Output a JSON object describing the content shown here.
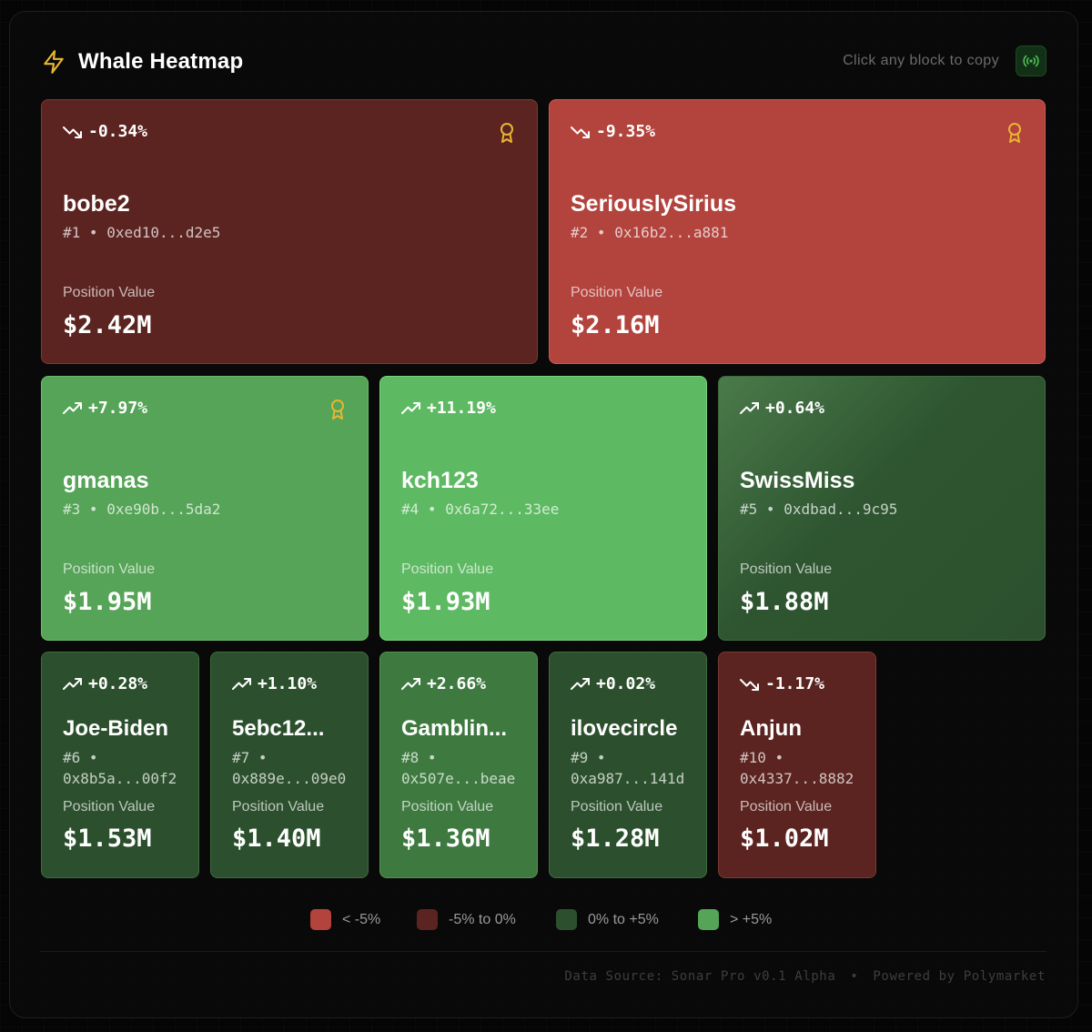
{
  "header": {
    "title": "Whale Heatmap",
    "hint": "Click any block to copy",
    "bolt_icon": "bolt-icon",
    "live_icon": "broadcast-icon"
  },
  "colors": {
    "strong_negative": "#b2433d",
    "mild_negative": "#5b2420",
    "mild_positive": "#2c502d",
    "strong_positive": "#55a457",
    "award": "#e8b630",
    "bolt": "#e8b630"
  },
  "pv_label": "Position Value",
  "whales": [
    {
      "rank_label": "#1",
      "name": "bobe2",
      "address": "0xed10...d2e5",
      "change": "-0.34%",
      "trend": "down",
      "value": "$2.42M",
      "award": true
    },
    {
      "rank_label": "#2",
      "name": "SeriouslySirius",
      "address": "0x16b2...a881",
      "change": "-9.35%",
      "trend": "down",
      "value": "$2.16M",
      "award": true
    },
    {
      "rank_label": "#3",
      "name": "gmanas",
      "address": "0xe90b...5da2",
      "change": "+7.97%",
      "trend": "up",
      "value": "$1.95M",
      "award": true
    },
    {
      "rank_label": "#4",
      "name": "kch123",
      "address": "0x6a72...33ee",
      "change": "+11.19%",
      "trend": "up",
      "value": "$1.93M",
      "award": false
    },
    {
      "rank_label": "#5",
      "name": "SwissMiss",
      "address": "0xdbad...9c95",
      "change": "+0.64%",
      "trend": "up",
      "value": "$1.88M",
      "award": false
    },
    {
      "rank_label": "#6",
      "name": "Joe-Biden",
      "address": "0x8b5a...00f2",
      "change": "+0.28%",
      "trend": "up",
      "value": "$1.53M",
      "award": false
    },
    {
      "rank_label": "#7",
      "name": "5ebc12...",
      "address": "0x889e...09e0",
      "change": "+1.10%",
      "trend": "up",
      "value": "$1.40M",
      "award": false
    },
    {
      "rank_label": "#8",
      "name": "Gamblin...",
      "address": "0x507e...beae",
      "change": "+2.66%",
      "trend": "up",
      "value": "$1.36M",
      "award": false
    },
    {
      "rank_label": "#9",
      "name": "ilovecircle",
      "address": "0xa987...141d",
      "change": "+0.02%",
      "trend": "up",
      "value": "$1.28M",
      "award": false
    },
    {
      "rank_label": "#10",
      "name": "Anjun",
      "address": "0x4337...8882",
      "change": "-1.17%",
      "trend": "down",
      "value": "$1.02M",
      "award": false
    }
  ],
  "legend": [
    {
      "label": "< -5%",
      "color": "#b2433d"
    },
    {
      "label": "-5% to 0%",
      "color": "#5b2420"
    },
    {
      "label": "0% to +5%",
      "color": "#2c502d"
    },
    {
      "label": "> +5%",
      "color": "#55a457"
    }
  ],
  "footer": {
    "source": "Data Source: Sonar Pro v0.1 Alpha",
    "separator": "•",
    "powered": "Powered by Polymarket"
  }
}
